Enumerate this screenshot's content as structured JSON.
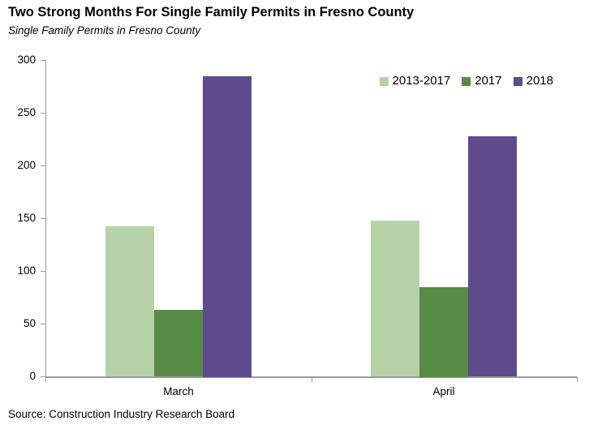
{
  "header": {
    "title": "Two Strong Months For Single Family Permits in Fresno County",
    "subtitle": "Single Family Permits in Fresno County"
  },
  "footer": {
    "source": "Source: Construction Industry Research Board"
  },
  "colors": {
    "series_2013_2017": "#b6d3a8",
    "series_2017": "#578c47",
    "series_2018": "#5f4b8c",
    "axis": "#9a9a9a",
    "text": "#000000",
    "background": "#ffffff"
  },
  "chart_data": {
    "type": "bar",
    "title": "Two Strong Months For Single Family Permits in Fresno County",
    "subtitle": "Single Family Permits in Fresno County",
    "categories": [
      "March",
      "April"
    ],
    "series": [
      {
        "name": "2013-2017",
        "color": "#b6d3a8",
        "values": [
          142,
          148
        ]
      },
      {
        "name": "2017",
        "color": "#578c47",
        "values": [
          63,
          85
        ]
      },
      {
        "name": "2018",
        "color": "#5f4b8c",
        "values": [
          285,
          228
        ]
      }
    ],
    "xlabel": "",
    "ylabel": "",
    "ylim": [
      0,
      300
    ],
    "yticks": [
      0,
      50,
      100,
      150,
      200,
      250,
      300
    ],
    "grid": false,
    "legend_position": "top-right",
    "source": "Source: Construction Industry Research Board"
  }
}
